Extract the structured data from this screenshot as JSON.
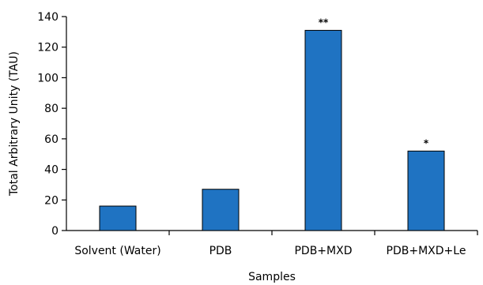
{
  "chart_data": {
    "type": "bar",
    "categories": [
      "Solvent (Water)",
      "PDB",
      "PDB+MXD",
      "PDB+MXD+Le"
    ],
    "values": [
      16,
      27,
      131,
      52
    ],
    "annotations": [
      "",
      "",
      "**",
      "*"
    ],
    "xlabel": "Samples",
    "ylabel": "Total Arbitrary Unity (TAU)",
    "ylim": [
      0,
      140
    ],
    "yticks": [
      0,
      20,
      40,
      60,
      80,
      100,
      120,
      140
    ],
    "grid": false,
    "legend": "none",
    "colors": {
      "bar_fill": "#1f73c2",
      "bar_stroke": "#000000",
      "axis": "#000000"
    }
  }
}
